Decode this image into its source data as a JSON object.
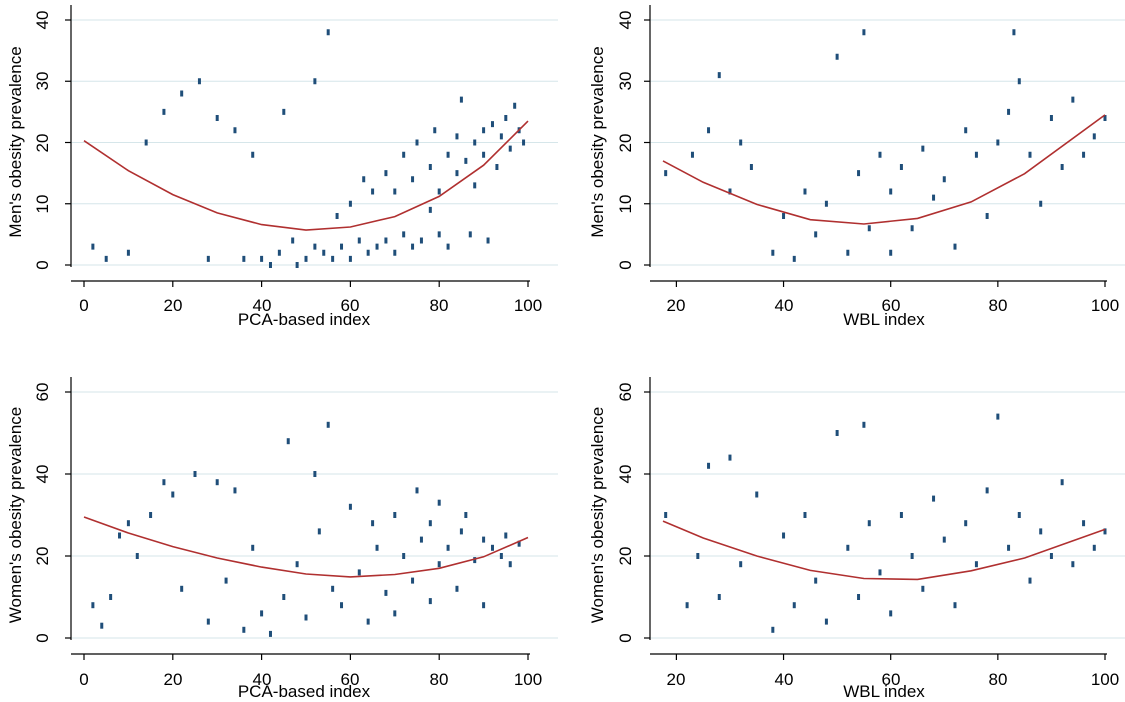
{
  "colors": {
    "scatter": "#1f4e79",
    "fit_line": "#b03030",
    "grid": "#d6e6ea",
    "axis": "#000000"
  },
  "chart_data": [
    {
      "type": "scatter",
      "xlabel": "PCA-based index",
      "ylabel": "Men's obesity prevalence",
      "xlim": [
        0,
        100
      ],
      "ylim": [
        0,
        40
      ],
      "xticks": [
        "0",
        "20",
        "40",
        "60",
        "80",
        "100"
      ],
      "yticks": [
        "0",
        "10",
        "20",
        "30",
        "40"
      ],
      "grid": true,
      "legend": "none",
      "series": [
        {
          "kind": "points",
          "x": [
            2,
            5,
            10,
            14,
            18,
            22,
            26,
            28,
            30,
            34,
            36,
            38,
            40,
            42,
            44,
            45,
            47,
            48,
            50,
            52,
            52,
            54,
            55,
            56,
            57,
            58,
            60,
            60,
            62,
            63,
            64,
            65,
            66,
            68,
            68,
            70,
            70,
            72,
            72,
            74,
            74,
            75,
            76,
            78,
            78,
            79,
            80,
            80,
            82,
            82,
            84,
            84,
            85,
            86,
            87,
            88,
            88,
            90,
            90,
            91,
            92,
            93,
            94,
            95,
            96,
            97,
            98,
            99
          ],
          "y": [
            3,
            1,
            2,
            20,
            25,
            28,
            30,
            1,
            24,
            22,
            1,
            18,
            1,
            0,
            2,
            25,
            4,
            0,
            1,
            30,
            3,
            2,
            38,
            1,
            8,
            3,
            1,
            10,
            4,
            14,
            2,
            12,
            3,
            4,
            15,
            2,
            12,
            5,
            18,
            3,
            14,
            20,
            4,
            9,
            16,
            22,
            5,
            12,
            18,
            3,
            15,
            21,
            27,
            17,
            5,
            20,
            13,
            22,
            18,
            4,
            23,
            16,
            21,
            24,
            19,
            26,
            22,
            20
          ]
        },
        {
          "kind": "fit",
          "x": [
            0,
            10,
            20,
            30,
            40,
            50,
            60,
            70,
            80,
            90,
            100
          ],
          "y": [
            20.3,
            15.4,
            11.5,
            8.5,
            6.6,
            5.7,
            6.2,
            7.9,
            11.2,
            16.3,
            23.5
          ]
        }
      ]
    },
    {
      "type": "scatter",
      "xlabel": "WBL index",
      "ylabel": "Men's obesity prevalence",
      "xlim": [
        17.5,
        100
      ],
      "ylim": [
        0,
        40
      ],
      "xticks": [
        "20",
        "40",
        "60",
        "80",
        "100"
      ],
      "yticks": [
        "0",
        "10",
        "20",
        "30",
        "40"
      ],
      "grid": true,
      "legend": "none",
      "series": [
        {
          "kind": "points",
          "x": [
            18,
            23,
            26,
            28,
            30,
            32,
            34,
            38,
            40,
            42,
            44,
            46,
            48,
            50,
            52,
            54,
            55,
            56,
            58,
            60,
            60,
            62,
            64,
            66,
            68,
            70,
            72,
            74,
            76,
            78,
            80,
            82,
            83,
            84,
            86,
            88,
            90,
            92,
            94,
            96,
            98,
            100
          ],
          "y": [
            15,
            18,
            22,
            31,
            12,
            20,
            16,
            2,
            8,
            1,
            12,
            5,
            10,
            34,
            2,
            15,
            38,
            6,
            18,
            2,
            12,
            16,
            6,
            19,
            11,
            14,
            3,
            22,
            18,
            8,
            20,
            25,
            38,
            30,
            18,
            10,
            24,
            16,
            27,
            18,
            21,
            24
          ]
        },
        {
          "kind": "fit",
          "x": [
            17.5,
            25,
            35,
            45,
            55,
            65,
            75,
            85,
            100
          ],
          "y": [
            17,
            13.5,
            9.9,
            7.4,
            6.7,
            7.6,
            10.3,
            14.9,
            24.5
          ]
        }
      ]
    },
    {
      "type": "scatter",
      "xlabel": "PCA-based index",
      "ylabel": "Women's obesity prevalence",
      "xlim": [
        0,
        100
      ],
      "ylim": [
        0,
        60
      ],
      "xticks": [
        "0",
        "20",
        "40",
        "60",
        "80",
        "100"
      ],
      "yticks": [
        "0",
        "20",
        "40",
        "60"
      ],
      "grid": true,
      "legend": "none",
      "series": [
        {
          "kind": "points",
          "x": [
            2,
            4,
            6,
            8,
            10,
            12,
            15,
            18,
            20,
            22,
            25,
            28,
            30,
            32,
            34,
            36,
            38,
            40,
            42,
            45,
            46,
            48,
            50,
            52,
            53,
            55,
            56,
            58,
            60,
            62,
            64,
            65,
            66,
            68,
            70,
            70,
            72,
            74,
            75,
            76,
            78,
            78,
            80,
            80,
            82,
            84,
            85,
            86,
            88,
            90,
            90,
            92,
            94,
            95,
            96,
            98
          ],
          "y": [
            8,
            3,
            10,
            25,
            28,
            20,
            30,
            38,
            35,
            12,
            40,
            4,
            38,
            14,
            36,
            2,
            22,
            6,
            1,
            10,
            48,
            18,
            5,
            40,
            26,
            52,
            12,
            8,
            32,
            16,
            4,
            28,
            22,
            11,
            6,
            30,
            20,
            14,
            36,
            24,
            9,
            28,
            18,
            33,
            22,
            12,
            26,
            30,
            19,
            24,
            8,
            22,
            20,
            25,
            18,
            23
          ]
        },
        {
          "kind": "fit",
          "x": [
            0,
            10,
            20,
            30,
            40,
            50,
            60,
            70,
            80,
            90,
            100
          ],
          "y": [
            29.5,
            25.6,
            22.3,
            19.5,
            17.3,
            15.6,
            14.9,
            15.5,
            17.0,
            19.8,
            24.5
          ]
        }
      ]
    },
    {
      "type": "scatter",
      "xlabel": "WBL index",
      "ylabel": "Women's obesity prevalence",
      "xlim": [
        17.5,
        100
      ],
      "ylim": [
        0,
        60
      ],
      "xticks": [
        "20",
        "40",
        "60",
        "80",
        "100"
      ],
      "yticks": [
        "0",
        "20",
        "40",
        "60"
      ],
      "grid": true,
      "legend": "none",
      "series": [
        {
          "kind": "points",
          "x": [
            18,
            22,
            24,
            26,
            28,
            30,
            32,
            35,
            38,
            40,
            42,
            44,
            46,
            48,
            50,
            52,
            54,
            55,
            56,
            58,
            60,
            62,
            64,
            66,
            68,
            70,
            72,
            74,
            76,
            78,
            80,
            82,
            84,
            86,
            88,
            90,
            92,
            94,
            96,
            98,
            100
          ],
          "y": [
            30,
            8,
            20,
            42,
            10,
            44,
            18,
            35,
            2,
            25,
            8,
            30,
            14,
            4,
            50,
            22,
            10,
            52,
            28,
            16,
            6,
            30,
            20,
            12,
            34,
            24,
            8,
            28,
            18,
            36,
            54,
            22,
            30,
            14,
            26,
            20,
            38,
            18,
            28,
            22,
            26
          ]
        },
        {
          "kind": "fit",
          "x": [
            17.5,
            25,
            35,
            45,
            55,
            65,
            75,
            85,
            100
          ],
          "y": [
            28.5,
            24.4,
            20.0,
            16.5,
            14.5,
            14.3,
            16.4,
            19.5,
            26.5
          ]
        }
      ]
    }
  ]
}
